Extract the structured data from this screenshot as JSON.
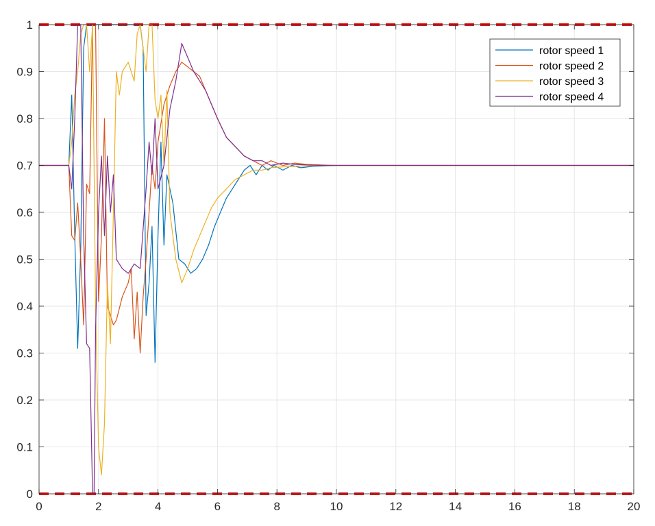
{
  "chart_data": {
    "type": "line",
    "xlim": [
      0,
      20
    ],
    "ylim": [
      0,
      1
    ],
    "xticks": [
      "0",
      "2",
      "4",
      "6",
      "8",
      "10",
      "12",
      "14",
      "16",
      "18",
      "20"
    ],
    "yticks": [
      "0",
      "0.1",
      "0.2",
      "0.3",
      "0.4",
      "0.5",
      "0.6",
      "0.7",
      "0.8",
      "0.9",
      "1"
    ],
    "grid": true,
    "legend_position": "top-right",
    "reference_lines": [
      {
        "y": 1,
        "color": "#e31a1c",
        "style": "dashed"
      },
      {
        "y": 0,
        "color": "#e31a1c",
        "style": "dashed"
      }
    ],
    "series": [
      {
        "name": "rotor speed 1",
        "color": "#0072BD",
        "x": [
          0,
          1.0,
          1.1,
          1.2,
          1.3,
          1.4,
          1.5,
          1.6,
          1.7,
          1.8,
          2.0,
          2.2,
          2.4,
          2.6,
          2.8,
          3.0,
          3.2,
          3.4,
          3.5,
          3.6,
          3.7,
          3.8,
          3.9,
          4.0,
          4.1,
          4.2,
          4.3,
          4.5,
          4.7,
          4.9,
          5.1,
          5.3,
          5.5,
          5.7,
          5.9,
          6.1,
          6.3,
          6.5,
          6.7,
          6.9,
          7.1,
          7.3,
          7.5,
          7.7,
          7.9,
          8.2,
          8.5,
          8.8,
          9.2,
          9.6,
          10,
          11,
          12,
          14,
          20
        ],
        "y": [
          0.7,
          0.7,
          0.85,
          0.55,
          0.31,
          0.52,
          0.95,
          1.0,
          1.0,
          1.0,
          1.0,
          1.0,
          1.0,
          1.0,
          1.0,
          1.0,
          1.0,
          1.0,
          0.95,
          0.38,
          0.45,
          0.57,
          0.28,
          0.55,
          0.75,
          0.53,
          0.68,
          0.62,
          0.5,
          0.49,
          0.47,
          0.48,
          0.5,
          0.53,
          0.57,
          0.6,
          0.63,
          0.65,
          0.67,
          0.69,
          0.7,
          0.68,
          0.7,
          0.69,
          0.7,
          0.69,
          0.7,
          0.695,
          0.698,
          0.699,
          0.7,
          0.7,
          0.7,
          0.7,
          0.7
        ]
      },
      {
        "name": "rotor speed 2",
        "color": "#D95319",
        "x": [
          0,
          1.0,
          1.1,
          1.2,
          1.3,
          1.4,
          1.5,
          1.6,
          1.7,
          1.8,
          1.9,
          2.0,
          2.1,
          2.2,
          2.3,
          2.4,
          2.5,
          2.6,
          2.8,
          3.0,
          3.1,
          3.2,
          3.3,
          3.4,
          3.5,
          3.6,
          3.7,
          3.8,
          3.9,
          4.0,
          4.2,
          4.4,
          4.6,
          4.8,
          5.0,
          5.2,
          5.4,
          5.6,
          5.8,
          6.0,
          6.3,
          6.6,
          6.9,
          7.2,
          7.5,
          7.8,
          8.2,
          8.6,
          9.0,
          9.5,
          10,
          11,
          12,
          14,
          20
        ],
        "y": [
          0.7,
          0.7,
          0.55,
          0.54,
          0.62,
          0.5,
          0.36,
          0.66,
          0.64,
          1.0,
          1.0,
          0.41,
          0.55,
          0.8,
          0.4,
          0.38,
          0.36,
          0.37,
          0.42,
          0.45,
          0.48,
          0.33,
          0.43,
          0.3,
          0.42,
          0.5,
          0.6,
          0.7,
          0.65,
          0.75,
          0.83,
          0.87,
          0.9,
          0.92,
          0.91,
          0.9,
          0.89,
          0.86,
          0.83,
          0.8,
          0.76,
          0.74,
          0.72,
          0.71,
          0.7,
          0.71,
          0.7,
          0.705,
          0.702,
          0.701,
          0.7,
          0.7,
          0.7,
          0.7,
          0.7
        ]
      },
      {
        "name": "rotor speed 3",
        "color": "#EDB120",
        "x": [
          0,
          1.0,
          1.1,
          1.2,
          1.3,
          1.4,
          1.5,
          1.6,
          1.7,
          1.8,
          1.9,
          2.0,
          2.1,
          2.2,
          2.3,
          2.4,
          2.5,
          2.6,
          2.7,
          2.8,
          3.0,
          3.2,
          3.3,
          3.4,
          3.5,
          3.6,
          3.7,
          3.8,
          3.9,
          4.0,
          4.1,
          4.2,
          4.3,
          4.4,
          4.6,
          4.8,
          5.0,
          5.2,
          5.4,
          5.6,
          5.8,
          6.0,
          6.3,
          6.6,
          6.9,
          7.2,
          7.5,
          7.8,
          8.2,
          8.6,
          9.0,
          9.5,
          10,
          11,
          12,
          14,
          20
        ],
        "y": [
          0.7,
          0.7,
          0.75,
          0.85,
          0.9,
          0.98,
          1.0,
          1.0,
          0.9,
          1.0,
          0.4,
          0.1,
          0.04,
          0.15,
          0.45,
          0.32,
          0.6,
          0.9,
          0.85,
          0.9,
          0.92,
          0.88,
          0.98,
          1.0,
          0.95,
          0.9,
          1.0,
          1.0,
          0.84,
          0.8,
          0.85,
          0.7,
          0.86,
          0.6,
          0.5,
          0.45,
          0.48,
          0.52,
          0.55,
          0.58,
          0.61,
          0.63,
          0.65,
          0.67,
          0.68,
          0.69,
          0.69,
          0.695,
          0.697,
          0.698,
          0.699,
          0.7,
          0.7,
          0.7,
          0.7,
          0.7,
          0.7
        ]
      },
      {
        "name": "rotor speed 4",
        "color": "#7E2F8E",
        "x": [
          0,
          1.0,
          1.1,
          1.2,
          1.3,
          1.4,
          1.5,
          1.6,
          1.7,
          1.8,
          1.85,
          1.9,
          2.0,
          2.1,
          2.2,
          2.3,
          2.4,
          2.5,
          2.6,
          2.8,
          3.0,
          3.2,
          3.4,
          3.6,
          3.7,
          3.8,
          3.9,
          4.0,
          4.2,
          4.4,
          4.6,
          4.8,
          5.0,
          5.2,
          5.4,
          5.6,
          5.8,
          6.0,
          6.3,
          6.6,
          6.9,
          7.2,
          7.5,
          7.8,
          8.2,
          8.6,
          9.0,
          9.5,
          10,
          11,
          12,
          14,
          20
        ],
        "y": [
          0.7,
          0.7,
          0.65,
          0.8,
          1.0,
          1.0,
          0.55,
          0.32,
          0.31,
          0.0,
          0.0,
          0.35,
          0.6,
          0.72,
          0.55,
          0.72,
          0.6,
          0.68,
          0.5,
          0.48,
          0.47,
          0.49,
          0.48,
          0.65,
          0.75,
          0.68,
          0.8,
          0.65,
          0.7,
          0.82,
          0.88,
          0.96,
          0.93,
          0.9,
          0.88,
          0.86,
          0.83,
          0.8,
          0.76,
          0.74,
          0.72,
          0.71,
          0.71,
          0.7,
          0.705,
          0.702,
          0.701,
          0.7,
          0.7,
          0.7,
          0.7,
          0.7,
          0.7
        ]
      }
    ]
  }
}
